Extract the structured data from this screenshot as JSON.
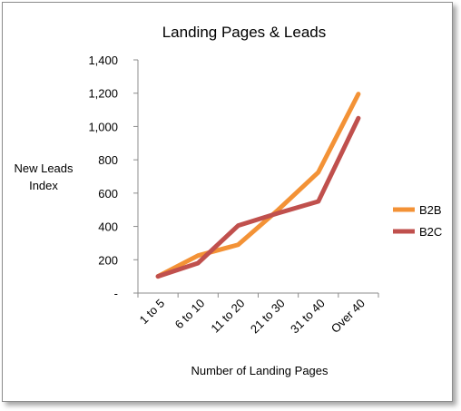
{
  "chart_data": {
    "type": "line",
    "title": "Landing Pages & Leads",
    "xlabel": "Number of Landing Pages",
    "ylabel_lines": [
      "New Leads",
      "Index"
    ],
    "categories": [
      "1 to 5",
      "6 to 10",
      "11 to 20",
      "21 to 30",
      "31 to 40",
      "Over 40"
    ],
    "y_ticks": [
      "-",
      "200",
      "400",
      "600",
      "800",
      "1,000",
      "1,200",
      "1,400"
    ],
    "ylim": [
      0,
      1400
    ],
    "grid": false,
    "legend_position": "right",
    "series": [
      {
        "name": "B2B",
        "color": "#f39236",
        "values": [
          100,
          225,
          290,
          500,
          725,
          1195
        ]
      },
      {
        "name": "B2C",
        "color": "#c0504d",
        "values": [
          100,
          180,
          405,
          480,
          550,
          1050
        ]
      }
    ]
  }
}
